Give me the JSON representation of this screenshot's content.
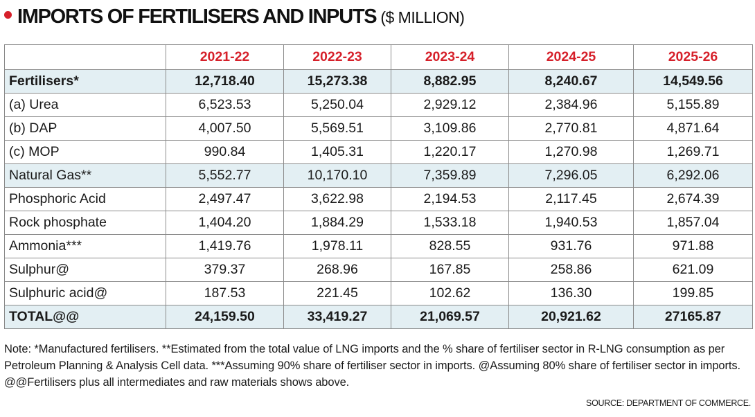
{
  "title": "IMPORTS OF FERTILISERS AND INPUTS",
  "unit": "($ MILLION)",
  "colors": {
    "accent": "#d6202a",
    "row_shade": "#e3eff3"
  },
  "chart_data": {
    "type": "table",
    "title": "IMPORTS OF FERTILISERS AND INPUTS",
    "subtitle": "($ MILLION)",
    "columns": [
      "2021-22",
      "2022-23",
      "2023-24",
      "2024-25",
      "2025-26"
    ],
    "rows": [
      {
        "label": "Fertilisers*",
        "values": [
          "12,718.40",
          "15,273.38",
          "8,882.95",
          "8,240.67",
          "14,549.56"
        ]
      },
      {
        "label": "(a) Urea",
        "values": [
          "6,523.53",
          "5,250.04",
          "2,929.12",
          "2,384.96",
          "5,155.89"
        ]
      },
      {
        "label": "(b) DAP",
        "values": [
          "4,007.50",
          "5,569.51",
          "3,109.86",
          "2,770.81",
          "4,871.64"
        ]
      },
      {
        "label": "(c) MOP",
        "values": [
          "990.84",
          "1,405.31",
          "1,220.17",
          "1,270.98",
          "1,269.71"
        ]
      },
      {
        "label": "Natural Gas**",
        "values": [
          "5,552.77",
          "10,170.10",
          "7,359.89",
          "7,296.05",
          "6,292.06"
        ]
      },
      {
        "label": "Phosphoric Acid",
        "values": [
          "2,497.47",
          "3,622.98",
          "2,194.53",
          "2,117.45",
          "2,674.39"
        ]
      },
      {
        "label": "Rock phosphate",
        "values": [
          "1,404.20",
          "1,884.29",
          "1,533.18",
          "1,940.53",
          "1,857.04"
        ]
      },
      {
        "label": "Ammonia***",
        "values": [
          "1,419.76",
          "1,978.11",
          "828.55",
          "931.76",
          "971.88"
        ]
      },
      {
        "label": "Sulphur@",
        "values": [
          "379.37",
          "268.96",
          "167.85",
          "258.86",
          "621.09"
        ]
      },
      {
        "label": "Sulphuric acid@",
        "values": [
          "187.53",
          "221.45",
          "102.62",
          "136.30",
          "199.85"
        ]
      },
      {
        "label": "TOTAL@@",
        "values": [
          "24,159.50",
          "33,419.27",
          "21,069.57",
          "20,921.62",
          "27165.87"
        ]
      }
    ]
  },
  "note": "Note: *Manufactured fertilisers. **Estimated from the total value of LNG imports and the % share of fertiliser sector in R-LNG consumption as per Petroleum Planning & Analysis Cell data. ***Assuming 90% share of fertiliser sector in imports. @Assuming 80% share of fertiliser sector in imports. @@Fertilisers plus all intermediates and raw materials shows above.",
  "source": "SOURCE: DEPARTMENT OF COMMERCE."
}
